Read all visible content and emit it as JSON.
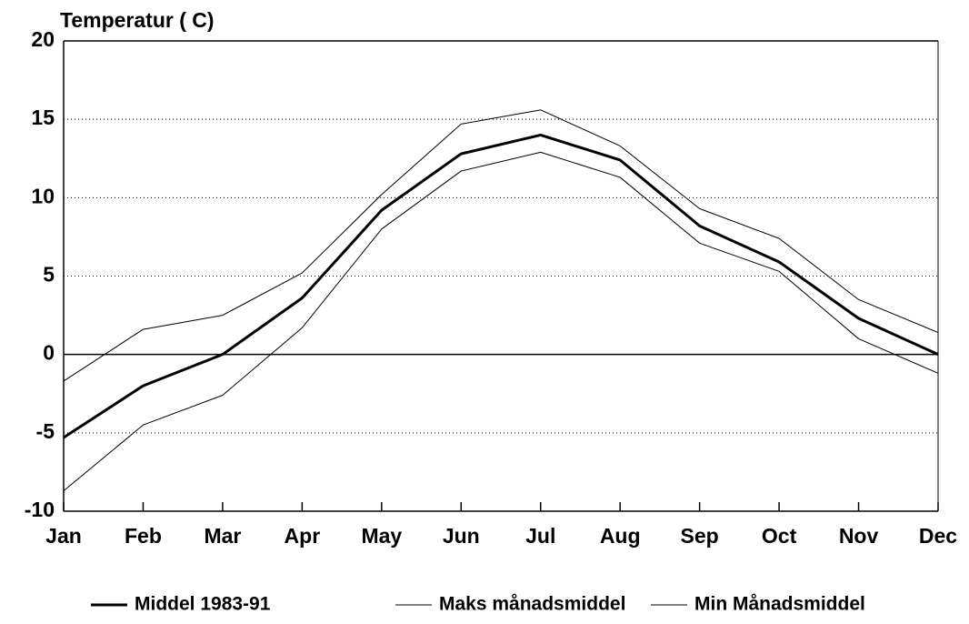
{
  "chart_data": {
    "type": "line",
    "y_axis_label": "Temperatur ( C)",
    "categories": [
      "Jan",
      "Feb",
      "Mar",
      "Apr",
      "May",
      "Jun",
      "Jul",
      "Aug",
      "Sep",
      "Oct",
      "Nov",
      "Dec"
    ],
    "series": [
      {
        "name": "Middel 1983-91",
        "color": "#000000",
        "line_width": 3,
        "values": [
          -5.3,
          -2,
          0,
          3.6,
          9.2,
          12.8,
          14,
          12.4,
          8.2,
          5.9,
          2.3,
          0
        ]
      },
      {
        "name": "Maks månadsmiddel",
        "color": "#000000",
        "line_width": 1,
        "values": [
          -1.7,
          1.6,
          2.5,
          5.2,
          10.2,
          14.7,
          15.6,
          13.3,
          9.3,
          7.4,
          3.5,
          1.4
        ]
      },
      {
        "name": "Min Månadsmiddel",
        "color": "#000000",
        "line_width": 1,
        "values": [
          -8.7,
          -4.5,
          -2.6,
          1.7,
          8,
          11.7,
          12.9,
          11.3,
          7.1,
          5.3,
          1,
          -1.2
        ]
      }
    ],
    "ylim": [
      -10,
      20
    ],
    "yticks": [
      -10,
      -5,
      0,
      5,
      10,
      15,
      20
    ],
    "grid": true
  }
}
